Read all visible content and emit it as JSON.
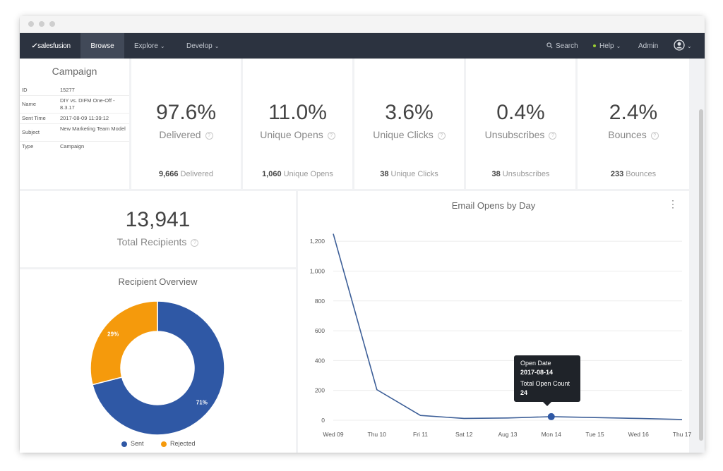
{
  "nav": {
    "brand": "salesfusion",
    "items": [
      {
        "label": "Browse"
      },
      {
        "label": "Explore"
      },
      {
        "label": "Develop"
      }
    ],
    "search_label": "Search",
    "help_label": "Help",
    "admin_label": "Admin",
    "colors": {
      "bar": "#2c3340",
      "active": "#414958",
      "help_dot": "#9acd32"
    }
  },
  "campaign": {
    "title": "Campaign",
    "rows": [
      {
        "key": "ID",
        "value": "15277"
      },
      {
        "key": "Name",
        "value": "DIY vs. DIFM One-Off - 8.3.17"
      },
      {
        "key": "Sent Time",
        "value": "2017-08-09 11:39:12"
      },
      {
        "key": "Subject",
        "value": "New Marketing Team Model"
      },
      {
        "key": "Type",
        "value": "Campaign"
      }
    ]
  },
  "stats": [
    {
      "percent": "97.6%",
      "label": "Delivered",
      "count": "9,666",
      "count_label": "Delivered"
    },
    {
      "percent": "11.0%",
      "label": "Unique Opens",
      "count": "1,060",
      "count_label": "Unique Opens"
    },
    {
      "percent": "3.6%",
      "label": "Unique Clicks",
      "count": "38",
      "count_label": "Unique Clicks"
    },
    {
      "percent": "0.4%",
      "label": "Unsubscribes",
      "count": "38",
      "count_label": "Unsubscribes"
    },
    {
      "percent": "2.4%",
      "label": "Bounces",
      "count": "233",
      "count_label": "Bounces"
    }
  ],
  "recipients": {
    "total": "13,941",
    "label": "Total Recipients"
  },
  "help_icon": "?",
  "chart_data": [
    {
      "type": "pie",
      "title": "Recipient Overview",
      "donut": true,
      "slices": [
        {
          "name": "Sent",
          "value": 71,
          "label": "71%",
          "color": "#2f58a5"
        },
        {
          "name": "Rejected",
          "value": 29,
          "label": "29%",
          "color": "#f59a0c"
        }
      ],
      "legend": "bottom"
    },
    {
      "type": "line",
      "title": "Email Opens by Day",
      "categories": [
        "Wed 09",
        "Thu 10",
        "Fri 11",
        "Sat 12",
        "Aug 13",
        "Mon 14",
        "Tue 15",
        "Wed 16",
        "Thu 17"
      ],
      "series": [
        {
          "values": [
            1250,
            205,
            32,
            12,
            15,
            24,
            18,
            12,
            5
          ],
          "color": "#3d5f98"
        }
      ],
      "yticks": [
        0,
        200,
        400,
        600,
        800,
        "1,000",
        "1,200"
      ],
      "ylim": [
        0,
        1300
      ],
      "grid": true
    }
  ],
  "tooltip": {
    "date_label": "Open Date",
    "date": "2017-08-14",
    "count_label": "Total Open Count",
    "count": "24"
  }
}
